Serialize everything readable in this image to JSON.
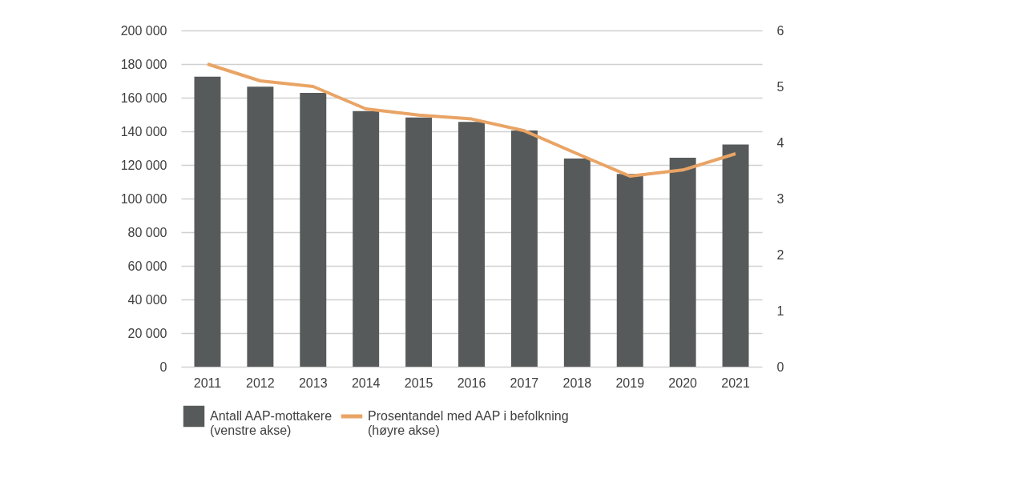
{
  "chart_data": {
    "type": "bar",
    "categories": [
      "2011",
      "2012",
      "2013",
      "2014",
      "2015",
      "2016",
      "2017",
      "2018",
      "2019",
      "2020",
      "2021"
    ],
    "series": [
      {
        "name": "Antall AAP-mottakere (venstre akse)",
        "color": "#575a5a",
        "values": [
          172500,
          166600,
          162900,
          152000,
          148200,
          145600,
          140500,
          123800,
          114700,
          124300,
          132200
        ]
      },
      {
        "name": "Prosentandel med AAP i befolkning (høyre akse)",
        "type": "line",
        "axis": "y2",
        "color": "#e9a465",
        "values": [
          5.4,
          5.1,
          5.0,
          4.6,
          4.49,
          4.42,
          4.21,
          3.8,
          3.4,
          3.51,
          3.8
        ]
      }
    ],
    "ylim": [
      0,
      200000
    ],
    "yticks": [
      {
        "value": 0,
        "label": "0"
      },
      {
        "value": 20000,
        "label": "20 000"
      },
      {
        "value": 40000,
        "label": "40 000"
      },
      {
        "value": 60000,
        "label": "60 000"
      },
      {
        "value": 80000,
        "label": "80 000"
      },
      {
        "value": 100000,
        "label": "100 000"
      },
      {
        "value": 120000,
        "label": "120 000"
      },
      {
        "value": 140000,
        "label": "140 000"
      },
      {
        "value": 160000,
        "label": "160 000"
      },
      {
        "value": 180000,
        "label": "180 000"
      },
      {
        "value": 200000,
        "label": "200 000"
      }
    ],
    "y2lim": [
      0,
      6
    ],
    "y2ticks": [
      0,
      1,
      2,
      3,
      4,
      5,
      6
    ],
    "grid": "y",
    "legend": "bottom",
    "marker": "none",
    "line_style": "solid"
  }
}
